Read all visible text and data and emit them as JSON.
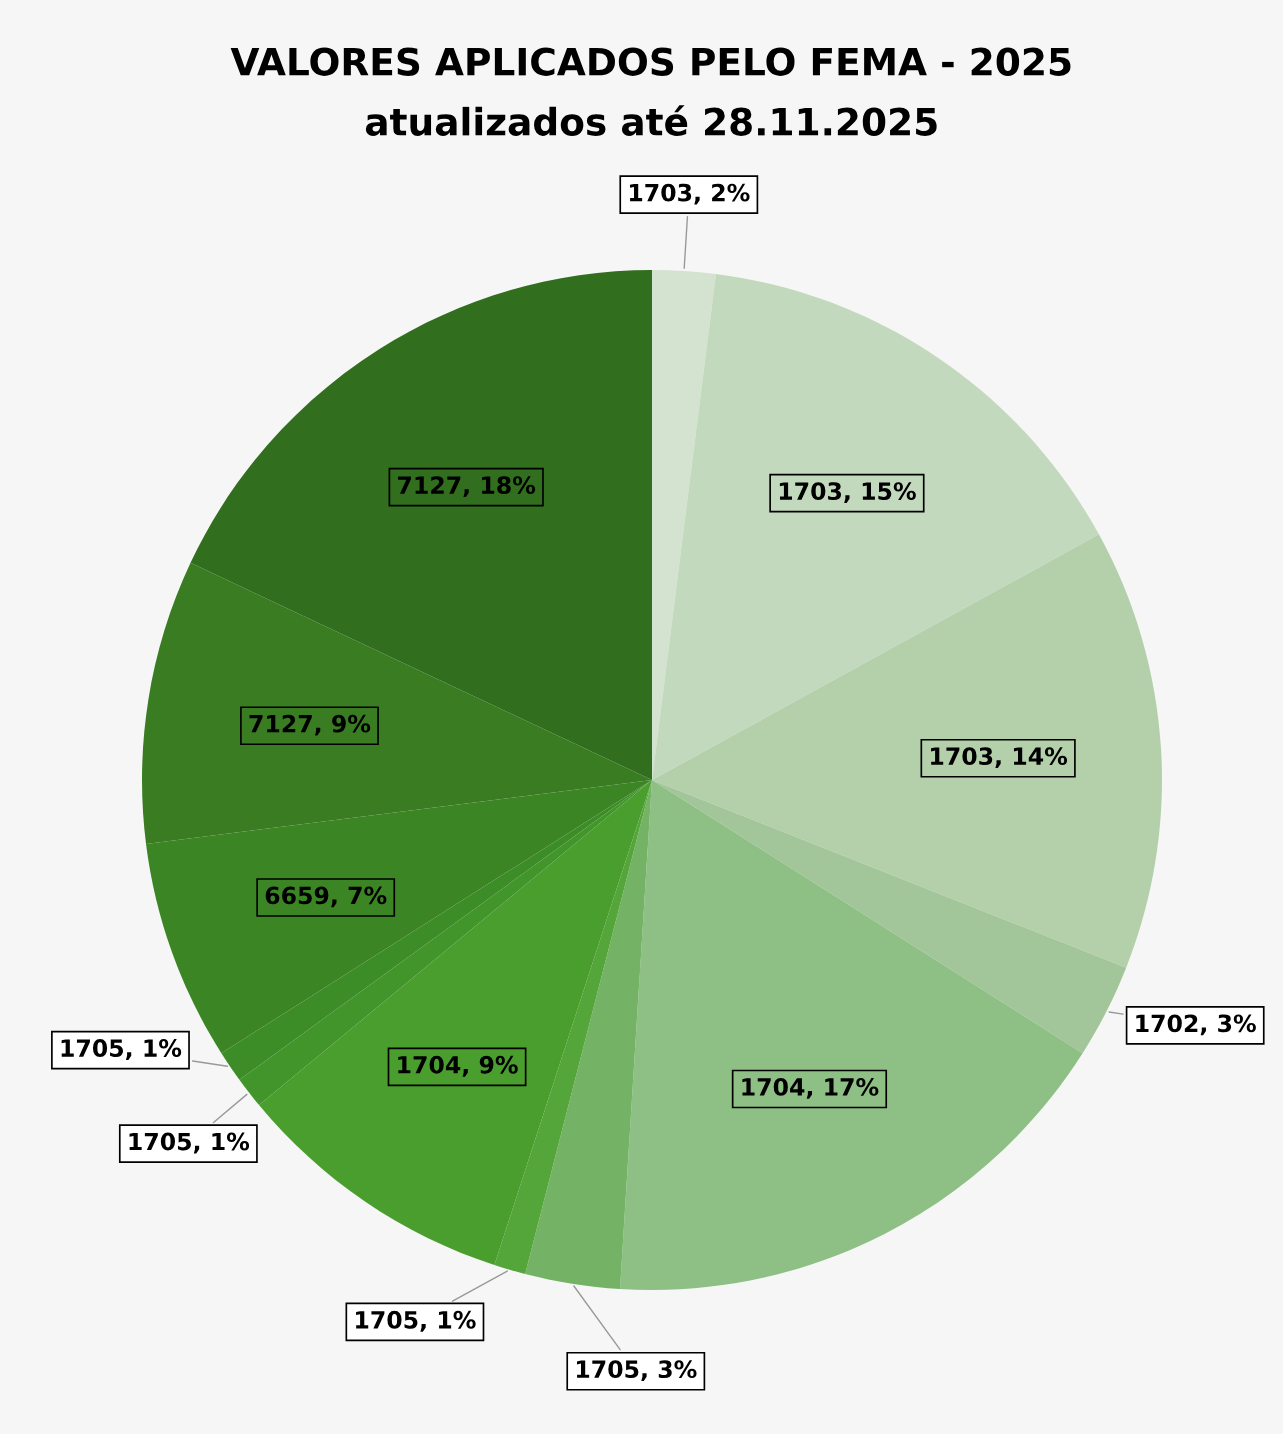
{
  "chart_data": {
    "type": "pie",
    "title": "VALORES APLICADOS PELO FEMA - 2025",
    "subtitle": "atualizados até 28.11.2025",
    "categories": [
      "1703",
      "1703",
      "1703",
      "1702",
      "1704",
      "1705",
      "1705",
      "1704",
      "1705",
      "1705",
      "6659",
      "7127",
      "7127"
    ],
    "values": [
      2,
      15,
      14,
      3,
      17,
      3,
      1,
      9,
      1,
      1,
      7,
      9,
      18
    ],
    "colors": [
      "#d3e3cf",
      "#c3d9bd",
      "#b3d0ab",
      "#a2c699",
      "#8ebf84",
      "#74b365",
      "#55a63a",
      "#4a9e2e",
      "#42952a",
      "#3c8c27",
      "#3b8524",
      "#397c22",
      "#316e1e"
    ],
    "value_labels": [
      "2%",
      "15%",
      "14%",
      "3%",
      "17%",
      "3%",
      "1%",
      "9%",
      "1%",
      "1%",
      "7%",
      "9%",
      "18%"
    ]
  }
}
